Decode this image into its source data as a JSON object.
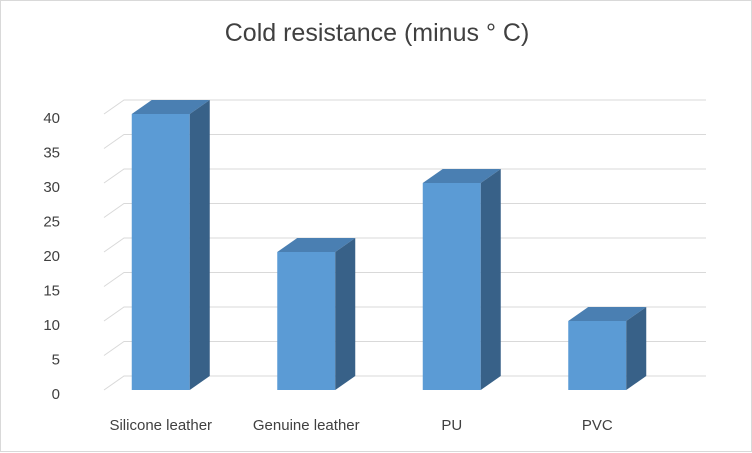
{
  "chart_data": {
    "type": "bar",
    "title": "Cold resistance (minus ° C)",
    "categories": [
      "Silicone leather",
      "Genuine leather",
      "PU",
      "PVC"
    ],
    "values": [
      40,
      20,
      30,
      10
    ],
    "xlabel": "",
    "ylabel": "",
    "ylim": [
      0,
      40
    ],
    "yticks": [
      "0",
      "5",
      "10",
      "15",
      "20",
      "25",
      "30",
      "35",
      "40"
    ],
    "grid": true,
    "legend": "none",
    "style": "3d-column",
    "colors": {
      "front": "#5b9bd5",
      "top": "#4a7fb2",
      "side": "#386188",
      "grid": "#d9d9d9",
      "text": "#404040"
    }
  }
}
